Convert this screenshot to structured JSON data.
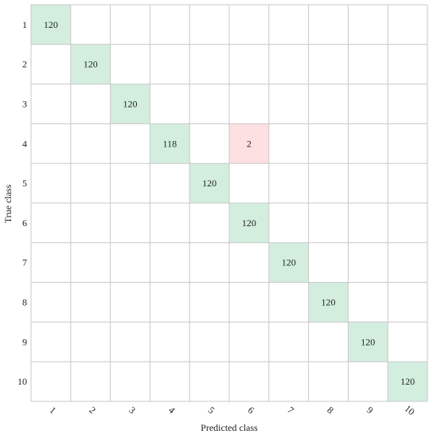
{
  "chart_data": {
    "type": "heatmap",
    "title": "",
    "xlabel": "Predicted class",
    "ylabel": "True class",
    "x_categories": [
      "1",
      "2",
      "3",
      "4",
      "5",
      "6",
      "7",
      "8",
      "9",
      "10"
    ],
    "y_categories": [
      "1",
      "2",
      "3",
      "4",
      "5",
      "6",
      "7",
      "8",
      "9",
      "10"
    ],
    "matrix": [
      [
        120,
        0,
        0,
        0,
        0,
        0,
        0,
        0,
        0,
        0
      ],
      [
        0,
        120,
        0,
        0,
        0,
        0,
        0,
        0,
        0,
        0
      ],
      [
        0,
        0,
        120,
        0,
        0,
        0,
        0,
        0,
        0,
        0
      ],
      [
        0,
        0,
        0,
        118,
        0,
        2,
        0,
        0,
        0,
        0
      ],
      [
        0,
        0,
        0,
        0,
        120,
        0,
        0,
        0,
        0,
        0
      ],
      [
        0,
        0,
        0,
        0,
        0,
        120,
        0,
        0,
        0,
        0
      ],
      [
        0,
        0,
        0,
        0,
        0,
        0,
        120,
        0,
        0,
        0
      ],
      [
        0,
        0,
        0,
        0,
        0,
        0,
        0,
        120,
        0,
        0
      ],
      [
        0,
        0,
        0,
        0,
        0,
        0,
        0,
        0,
        120,
        0
      ],
      [
        0,
        0,
        0,
        0,
        0,
        0,
        0,
        0,
        0,
        120
      ]
    ],
    "grid": true,
    "colors": {
      "correct": "#d3eedf",
      "incorrect": "#fde0e1",
      "grid_line": "#c8c8c8",
      "background": "#ffffff"
    }
  }
}
